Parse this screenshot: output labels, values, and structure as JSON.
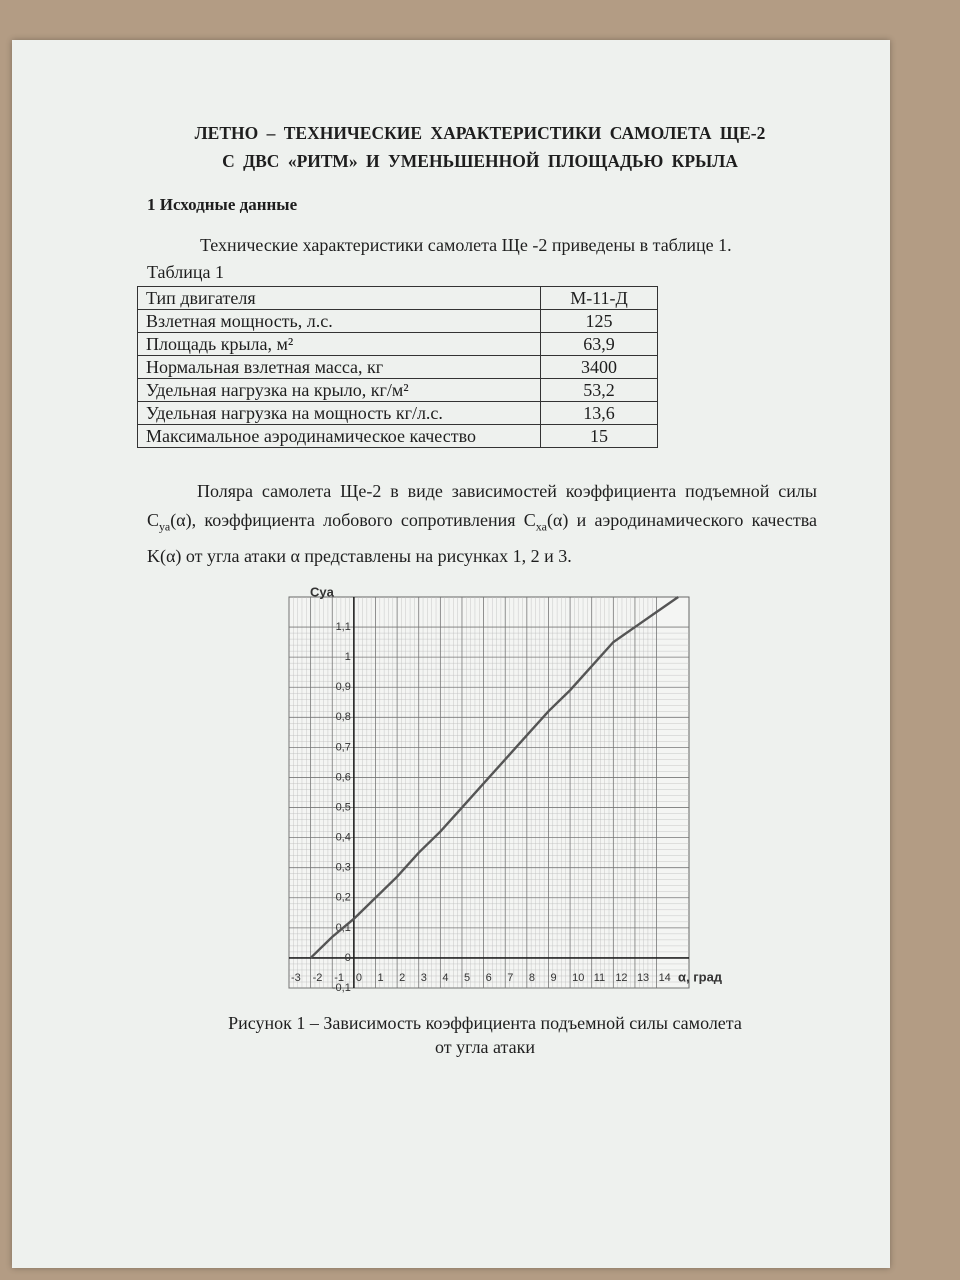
{
  "title": [
    "ЛЕТНО – ТЕХНИЧЕСКИЕ ХАРАКТЕРИСТИКИ САМОЛЕТА ЩЕ-2",
    "С ДВС «РИТМ» И УМЕНЬШЕННОЙ ПЛОЩАДЬЮ КРЫЛА"
  ],
  "section": "1 Исходные данные",
  "intro": "Технические характеристики самолета Ще -2 приведены в таблице 1.",
  "table": {
    "caption": "Таблица 1",
    "rows": [
      [
        "Тип двигателя",
        "М-11-Д"
      ],
      [
        "Взлетная мощность, л.с.",
        "125"
      ],
      [
        "Площадь крыла, м²",
        "63,9"
      ],
      [
        "Нормальная взлетная масса, кг",
        "3400"
      ],
      [
        "Удельная нагрузка на крыло, кг/м²",
        "53,2"
      ],
      [
        "Удельная нагрузка на мощность кг/л.с.",
        "13,6"
      ],
      [
        "Максимальное аэродинамическое качество",
        "15"
      ]
    ]
  },
  "paragraph": {
    "parts": [
      {
        "text": "Поляра самолета Ще-2 в виде зависимостей коэффициента подъемной силы C"
      },
      {
        "sub": "уа"
      },
      {
        "text": "(α), коэффициента лобового сопротивления C"
      },
      {
        "sub": "ха"
      },
      {
        "text": "(α) и аэродинамического качества K(α) от угла атаки α представлены на рисунках 1, 2 и 3."
      }
    ]
  },
  "chart_data": {
    "type": "line",
    "y_label": "Cya",
    "x_label": "α, град",
    "color": "#555555",
    "grid": true,
    "x": [
      -2,
      -1,
      0,
      1,
      2,
      3,
      4,
      5,
      6,
      7,
      8,
      9,
      10,
      11,
      12,
      13,
      14,
      15
    ],
    "values": [
      0,
      0.07,
      0.13,
      0.2,
      0.27,
      0.35,
      0.42,
      0.5,
      0.58,
      0.66,
      0.74,
      0.82,
      0.89,
      0.97,
      1.05,
      1.1,
      1.15,
      1.2
    ],
    "xlim": [
      -3,
      15.5
    ],
    "ylim": [
      -0.1,
      1.2
    ],
    "xticks": [
      -3,
      -2,
      -1,
      0,
      1,
      2,
      3,
      4,
      5,
      6,
      7,
      8,
      9,
      10,
      11,
      12,
      13,
      14
    ],
    "yticks": [
      {
        "value": -0.1,
        "label": "-0,1"
      },
      0,
      {
        "value": 0.1,
        "label": "0,1"
      },
      {
        "value": 0.2,
        "label": "0,2"
      },
      {
        "value": 0.3,
        "label": "0,3"
      },
      {
        "value": 0.4,
        "label": "0,4"
      },
      {
        "value": 0.5,
        "label": "0,5"
      },
      {
        "value": 0.6,
        "label": "0,6"
      },
      {
        "value": 0.7,
        "label": "0,7"
      },
      {
        "value": 0.8,
        "label": "0,8"
      },
      {
        "value": 0.9,
        "label": "0,9"
      },
      1,
      {
        "value": 1.1,
        "label": "1,1"
      }
    ]
  },
  "figure_caption": [
    "Рисунок 1 – Зависимость коэффициента подъемной силы самолета",
    "от угла атаки"
  ]
}
